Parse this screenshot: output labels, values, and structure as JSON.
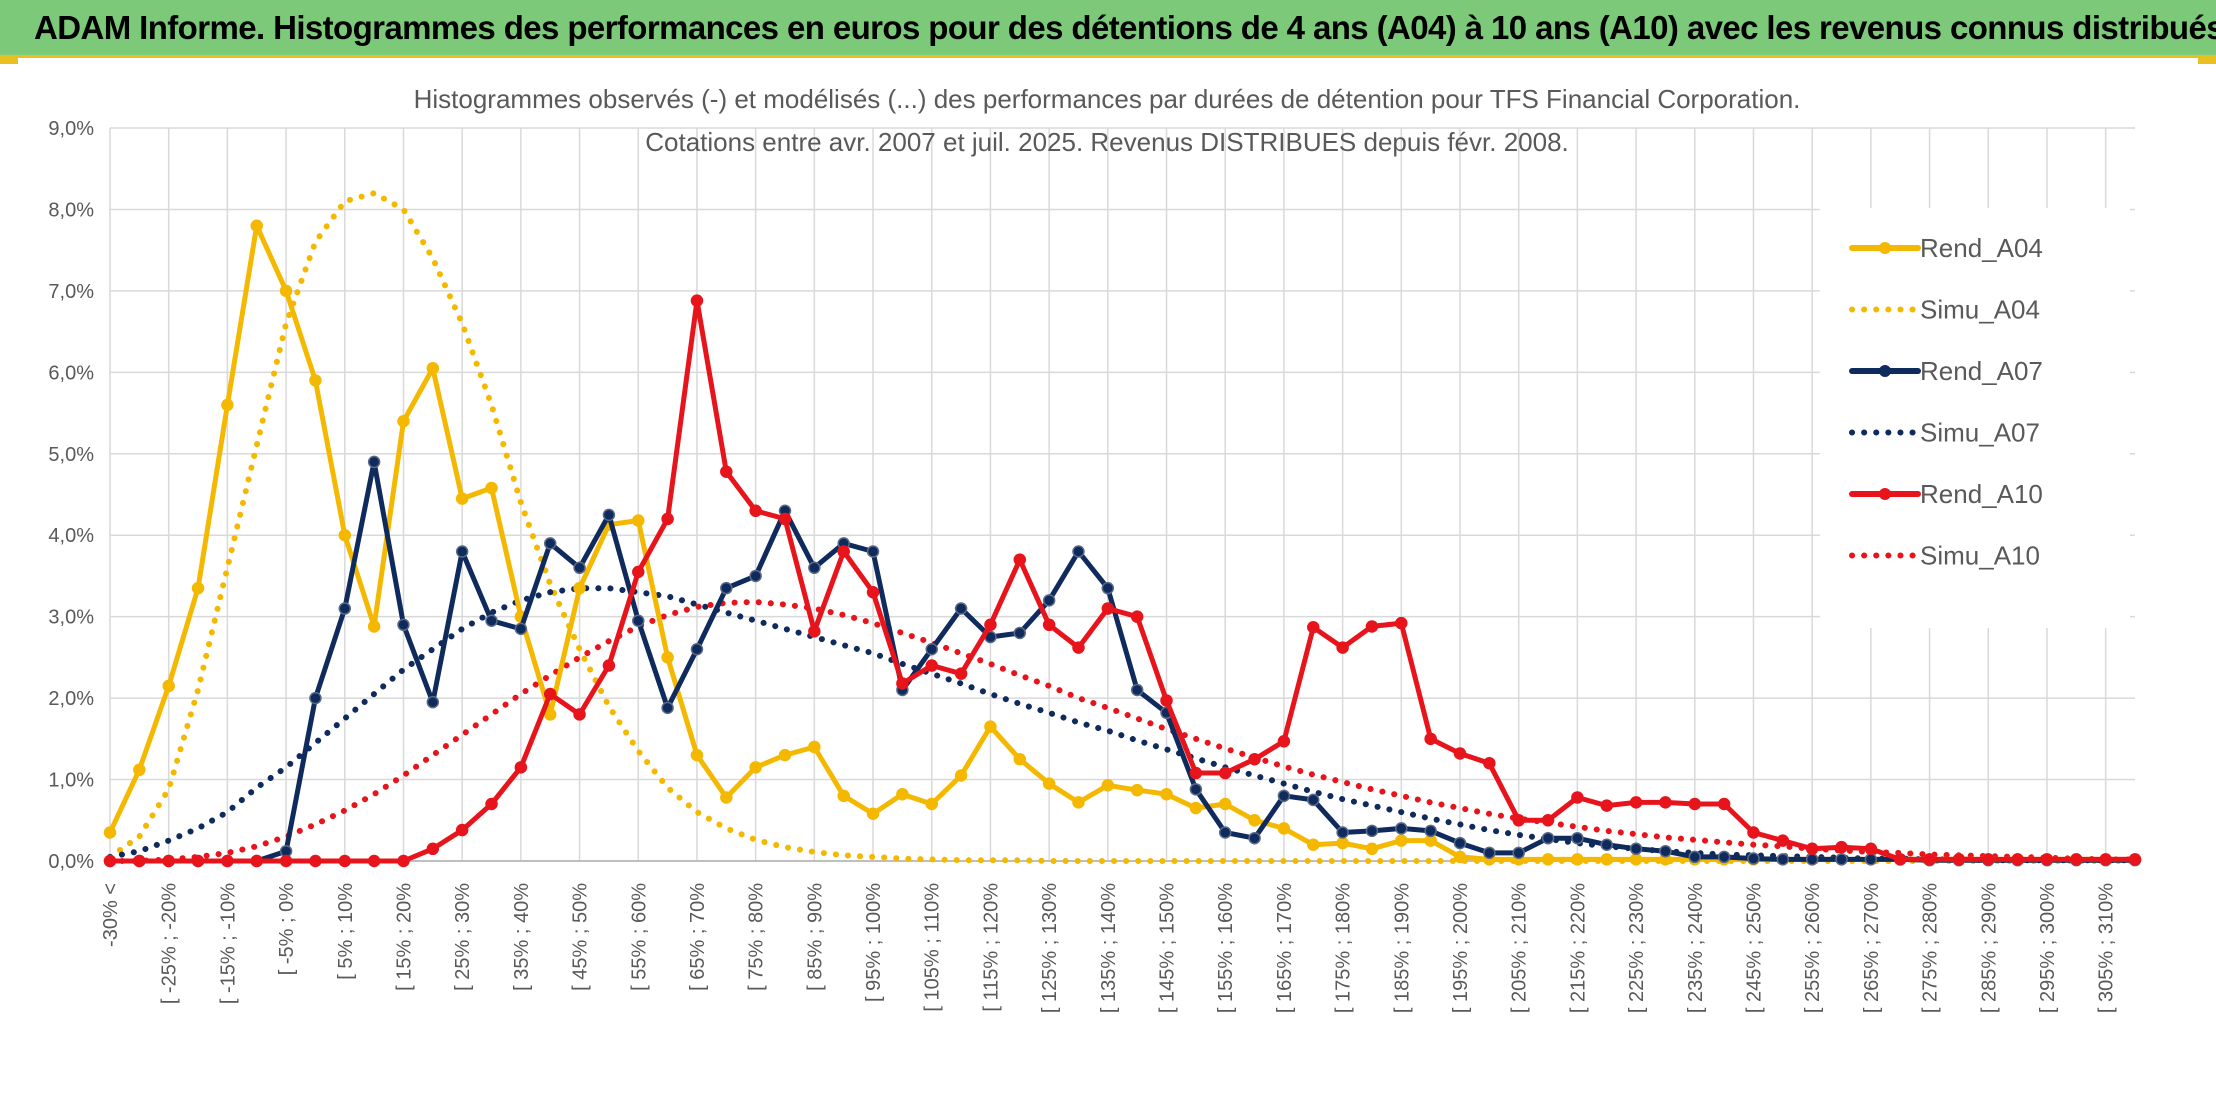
{
  "banner": {
    "title": "ADAM Informe. Histogrammes des performances en euros pour des détentions de 4 ans (A04) à 10 ans (A10) avec les revenus connus distribués"
  },
  "colors": {
    "banner_bg": "#7cc979",
    "yellow": "#f5b800",
    "navy": "#0f2a5c",
    "red": "#e8141c",
    "grid": "#d9d9d9"
  },
  "chart_data": {
    "type": "line",
    "title": "Histogrammes observés (-) et modélisés (...) des performances par durées de détention pour TFS Financial Corporation.",
    "subtitle": "Cotations entre avr. 2007 et juil. 2025. Revenus DISTRIBUES depuis févr. 2008.",
    "xlabel": "",
    "ylabel": "",
    "ylim": [
      0,
      9
    ],
    "y_unit": "%",
    "y_ticks": [
      "0,0%",
      "1,0%",
      "2,0%",
      "3,0%",
      "4,0%",
      "5,0%",
      "6,0%",
      "7,0%",
      "8,0%",
      "9,0%"
    ],
    "grid": true,
    "legend_position": "top-right",
    "x_tick_labels": [
      "-30% <",
      "[ -25% ; -20%",
      "[ -15% ; -10%",
      "[ -5% ; 0%",
      "[ 5% ; 10%",
      "[ 15% ; 20%",
      "[ 25% ; 30%",
      "[ 35% ; 40%",
      "[ 45% ; 50%",
      "[ 55% ; 60%",
      "[ 65% ; 70%",
      "[ 75% ; 80%",
      "[ 85% ; 90%",
      "[ 95% ; 100%",
      "[ 105% ; 110%",
      "[ 115% ; 120%",
      "[ 125% ; 130%",
      "[ 135% ; 140%",
      "[ 145% ; 150%",
      "[ 155% ; 160%",
      "[ 165% ; 170%",
      "[ 175% ; 180%",
      "[ 185% ; 190%",
      "[ 195% ; 200%",
      "[ 205% ; 210%",
      "[ 215% ; 220%",
      "[ 225% ; 230%",
      "[ 235% ; 240%",
      "[ 245% ; 250%",
      "[ 255% ; 260%",
      "[ 265% ; 270%",
      "[ 275% ; 280%",
      "[ 285% ; 290%",
      "[ 295% ; 300%",
      "[ 305% ; 310%"
    ],
    "n_bins": 70,
    "series": [
      {
        "name": "Rend_A04",
        "style": "solid-markers",
        "color": "#f5b800",
        "values": [
          0.35,
          1.12,
          2.15,
          3.35,
          5.6,
          7.8,
          7.0,
          5.9,
          4.0,
          2.88,
          5.4,
          6.05,
          4.45,
          4.58,
          3.0,
          1.8,
          3.35,
          4.13,
          4.18,
          2.5,
          1.3,
          0.78,
          1.15,
          1.3,
          1.4,
          0.8,
          0.58,
          0.82,
          0.7,
          1.05,
          1.65,
          1.25,
          0.95,
          0.72,
          0.93,
          0.87,
          0.82,
          0.65,
          0.7,
          0.5,
          0.4,
          0.2,
          0.22,
          0.15,
          0.25,
          0.25,
          0.05,
          0.02,
          0.02,
          0.02,
          0.02,
          0.02,
          0.02,
          0.02,
          0.02,
          0.02,
          0.02,
          0.02,
          0.02,
          0.02,
          0.02,
          0.02,
          0.02,
          0.02,
          0.02,
          0.02,
          0.02,
          0.02,
          0.02,
          0.02
        ]
      },
      {
        "name": "Simu_A04",
        "style": "dotted",
        "color": "#f5b800",
        "values": [
          0.05,
          0.3,
          0.88,
          2.1,
          3.6,
          5.1,
          6.6,
          7.6,
          8.1,
          8.2,
          8.0,
          7.4,
          6.6,
          5.6,
          4.4,
          3.4,
          2.6,
          1.9,
          1.35,
          0.9,
          0.6,
          0.4,
          0.26,
          0.17,
          0.11,
          0.07,
          0.05,
          0.03,
          0.02,
          0.01,
          0.01,
          0.01,
          0.0,
          0.0,
          0.0,
          0.0,
          0.0,
          0.0,
          0.0,
          0.0,
          0.0,
          0.0,
          0.0,
          0.0,
          0.0,
          0.0,
          0.0,
          0.0,
          0.0,
          0.0,
          0.0,
          0.0,
          0.0,
          0.0,
          0.0,
          0.0,
          0.0,
          0.0,
          0.0,
          0.0,
          0.0,
          0.0,
          0.0,
          0.0,
          0.0,
          0.0,
          0.0,
          0.0,
          0.0,
          0.0
        ]
      },
      {
        "name": "Rend_A07",
        "style": "solid-markers",
        "color": "#0f2a5c",
        "values": [
          0.0,
          0.0,
          0.0,
          0.0,
          0.0,
          0.0,
          0.12,
          2.0,
          3.1,
          4.9,
          2.9,
          1.95,
          3.8,
          2.95,
          2.85,
          3.9,
          3.6,
          4.25,
          2.95,
          1.88,
          2.6,
          3.35,
          3.5,
          4.3,
          3.6,
          3.9,
          3.8,
          2.1,
          2.6,
          3.1,
          2.75,
          2.8,
          3.2,
          3.8,
          3.35,
          2.1,
          1.82,
          0.88,
          0.35,
          0.28,
          0.8,
          0.75,
          0.35,
          0.37,
          0.4,
          0.37,
          0.22,
          0.1,
          0.1,
          0.28,
          0.28,
          0.2,
          0.15,
          0.12,
          0.05,
          0.05,
          0.03,
          0.02,
          0.02,
          0.02,
          0.02,
          0.02,
          0.01,
          0.01,
          0.01,
          0.01,
          0.01,
          0.01,
          0.01,
          0.01
        ]
      },
      {
        "name": "Simu_A07",
        "style": "dotted",
        "color": "#0f2a5c",
        "values": [
          0.05,
          0.12,
          0.25,
          0.4,
          0.6,
          0.9,
          1.15,
          1.45,
          1.75,
          2.05,
          2.35,
          2.6,
          2.85,
          3.05,
          3.2,
          3.3,
          3.35,
          3.35,
          3.3,
          3.25,
          3.15,
          3.05,
          2.95,
          2.85,
          2.75,
          2.65,
          2.55,
          2.42,
          2.3,
          2.18,
          2.05,
          1.93,
          1.82,
          1.7,
          1.6,
          1.48,
          1.37,
          1.26,
          1.15,
          1.05,
          0.95,
          0.85,
          0.76,
          0.68,
          0.6,
          0.52,
          0.45,
          0.38,
          0.32,
          0.27,
          0.22,
          0.18,
          0.15,
          0.12,
          0.1,
          0.08,
          0.07,
          0.06,
          0.05,
          0.04,
          0.03,
          0.03,
          0.02,
          0.02,
          0.01,
          0.01,
          0.01,
          0.01,
          0.01,
          0.01
        ]
      },
      {
        "name": "Rend_A10",
        "style": "solid-markers",
        "color": "#e8141c",
        "values": [
          0.0,
          0.0,
          0.0,
          0.0,
          0.0,
          0.0,
          0.0,
          0.0,
          0.0,
          0.0,
          0.0,
          0.15,
          0.38,
          0.7,
          1.15,
          2.05,
          1.8,
          2.4,
          3.55,
          4.2,
          6.88,
          4.78,
          4.3,
          4.2,
          2.82,
          3.8,
          3.3,
          2.18,
          2.4,
          2.3,
          2.9,
          3.7,
          2.9,
          2.62,
          3.1,
          3.0,
          1.97,
          1.08,
          1.08,
          1.25,
          1.47,
          2.87,
          2.62,
          2.88,
          2.92,
          1.5,
          1.32,
          1.2,
          0.5,
          0.5,
          0.78,
          0.68,
          0.72,
          0.72,
          0.7,
          0.7,
          0.35,
          0.25,
          0.15,
          0.17,
          0.15,
          0.02,
          0.02,
          0.02,
          0.02,
          0.02,
          0.02,
          0.02,
          0.02,
          0.02
        ]
      },
      {
        "name": "Simu_A10",
        "style": "dotted",
        "color": "#e8141c",
        "values": [
          0.0,
          0.0,
          0.02,
          0.05,
          0.1,
          0.18,
          0.3,
          0.45,
          0.62,
          0.82,
          1.05,
          1.3,
          1.55,
          1.8,
          2.05,
          2.28,
          2.5,
          2.7,
          2.88,
          3.02,
          3.12,
          3.17,
          3.18,
          3.15,
          3.1,
          3.02,
          2.92,
          2.8,
          2.68,
          2.55,
          2.42,
          2.28,
          2.15,
          2.0,
          1.88,
          1.75,
          1.62,
          1.5,
          1.38,
          1.27,
          1.16,
          1.06,
          0.97,
          0.88,
          0.8,
          0.72,
          0.65,
          0.58,
          0.52,
          0.47,
          0.42,
          0.37,
          0.33,
          0.29,
          0.26,
          0.23,
          0.2,
          0.18,
          0.15,
          0.13,
          0.11,
          0.1,
          0.08,
          0.07,
          0.06,
          0.05,
          0.04,
          0.03,
          0.02,
          0.02
        ]
      }
    ]
  }
}
